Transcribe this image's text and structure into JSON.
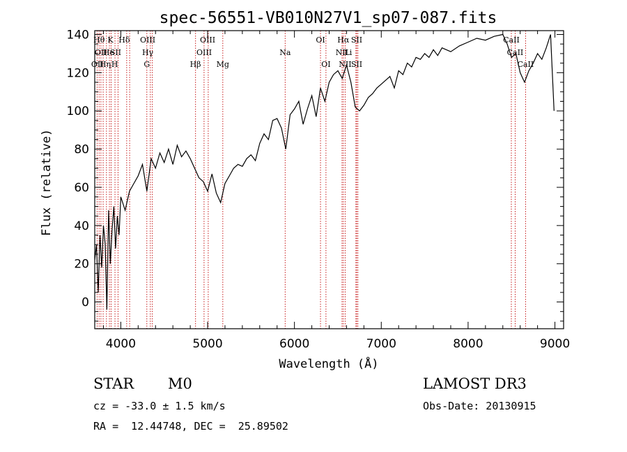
{
  "chart_data": {
    "type": "line",
    "title": "spec-56551-VB010N27V1_sp07-087.fits",
    "xlabel": "Wavelength (Å)",
    "ylabel": "Flux (relative)",
    "xlim": [
      3700,
      9100
    ],
    "ylim": [
      -14,
      142
    ],
    "xticks": [
      4000,
      5000,
      6000,
      7000,
      8000,
      9000
    ],
    "yticks": [
      0,
      20,
      40,
      60,
      80,
      100,
      120,
      140
    ],
    "series": [
      {
        "name": "flux",
        "x": [
          3700,
          3720,
          3740,
          3760,
          3780,
          3800,
          3820,
          3840,
          3860,
          3880,
          3900,
          3920,
          3940,
          3960,
          3980,
          4000,
          4050,
          4100,
          4150,
          4200,
          4250,
          4300,
          4350,
          4400,
          4450,
          4500,
          4550,
          4600,
          4650,
          4700,
          4750,
          4800,
          4850,
          4900,
          4950,
          5000,
          5050,
          5100,
          5150,
          5200,
          5250,
          5300,
          5350,
          5400,
          5450,
          5500,
          5550,
          5600,
          5650,
          5700,
          5750,
          5800,
          5850,
          5900,
          5950,
          6000,
          6050,
          6100,
          6150,
          6200,
          6250,
          6300,
          6350,
          6400,
          6450,
          6500,
          6550,
          6600,
          6650,
          6700,
          6750,
          6800,
          6850,
          6900,
          6950,
          7000,
          7050,
          7100,
          7150,
          7200,
          7250,
          7300,
          7350,
          7400,
          7450,
          7500,
          7550,
          7600,
          7650,
          7700,
          7800,
          7900,
          8000,
          8100,
          8200,
          8300,
          8400,
          8450,
          8500,
          8550,
          8600,
          8650,
          8700,
          8750,
          8800,
          8850,
          8900,
          8950,
          8990
        ],
        "values": [
          22,
          30,
          5,
          35,
          18,
          40,
          30,
          -4,
          48,
          20,
          38,
          50,
          28,
          45,
          35,
          55,
          48,
          58,
          62,
          66,
          72,
          58,
          75,
          70,
          78,
          73,
          80,
          72,
          82,
          76,
          79,
          75,
          70,
          65,
          63,
          58,
          67,
          57,
          52,
          62,
          66,
          70,
          72,
          71,
          75,
          77,
          74,
          83,
          88,
          85,
          95,
          96,
          91,
          80,
          98,
          101,
          105,
          93,
          101,
          108,
          97,
          112,
          105,
          115,
          119,
          121,
          117,
          124,
          115,
          102,
          100,
          103,
          107,
          109,
          112,
          114,
          116,
          118,
          112,
          121,
          119,
          125,
          123,
          128,
          127,
          130,
          128,
          132,
          129,
          133,
          131,
          134,
          136,
          138,
          137,
          139,
          140,
          135,
          128,
          130,
          120,
          115,
          121,
          125,
          130,
          127,
          133,
          140,
          100
        ]
      }
    ],
    "line_labels": [
      {
        "w": 3730,
        "text": "OII",
        "row": 2
      },
      {
        "w": 3750,
        "text": "Hθ",
        "row": 0
      },
      {
        "w": 3770,
        "text": "OII",
        "row": 1
      },
      {
        "w": 3820,
        "text": "Hη",
        "row": 2
      },
      {
        "w": 3860,
        "text": "He",
        "row": 1
      },
      {
        "w": 3880,
        "text": "K",
        "row": 0
      },
      {
        "w": 3930,
        "text": "H",
        "row": 2
      },
      {
        "w": 3940,
        "text": "SII",
        "row": 1
      },
      {
        "w": 4040,
        "text": "Hδ",
        "row": 0
      },
      {
        "w": 4310,
        "text": "OIII",
        "row": 0
      },
      {
        "w": 4310,
        "text": "Hγ",
        "row": 1
      },
      {
        "w": 4300,
        "text": "G",
        "row": 2
      },
      {
        "w": 4860,
        "text": "Hβ",
        "row": 2
      },
      {
        "w": 5000,
        "text": "OIII",
        "row": 0
      },
      {
        "w": 4960,
        "text": "OIII",
        "row": 1
      },
      {
        "w": 5175,
        "text": "Mg",
        "row": 2
      },
      {
        "w": 5893,
        "text": "Na",
        "row": 1
      },
      {
        "w": 6300,
        "text": "OI",
        "row": 0
      },
      {
        "w": 6363,
        "text": "OI",
        "row": 2
      },
      {
        "w": 6563,
        "text": "Hα",
        "row": 0
      },
      {
        "w": 6548,
        "text": "NII",
        "row": 1
      },
      {
        "w": 6584,
        "text": "NII",
        "row": 2
      },
      {
        "w": 6620,
        "text": "Li",
        "row": 1
      },
      {
        "w": 6717,
        "text": "SII",
        "row": 0
      },
      {
        "w": 6717,
        "text": "SII",
        "row": 2
      },
      {
        "w": 8498,
        "text": "CaII",
        "row": 0
      },
      {
        "w": 8542,
        "text": "CaII",
        "row": 1
      },
      {
        "w": 8662,
        "text": "CaII",
        "row": 2
      }
    ],
    "line_markers": [
      3727,
      3750,
      3771,
      3797,
      3835,
      3869,
      3889,
      3933,
      3968,
      4068,
      4102,
      4300,
      4340,
      4363,
      4861,
      4959,
      5007,
      5175,
      5893,
      6300,
      6363,
      6548,
      6563,
      6584,
      6708,
      6717,
      6731,
      8498,
      8542,
      8662
    ]
  },
  "info": {
    "class_label": "STAR",
    "subclass": "M0",
    "survey": "LAMOST DR3",
    "redshift": "cz = -33.0 ± 1.5 km/s",
    "obs_date": "Obs-Date: 20130915",
    "coords": "RA =  12.44748, DEC =  25.89502"
  }
}
